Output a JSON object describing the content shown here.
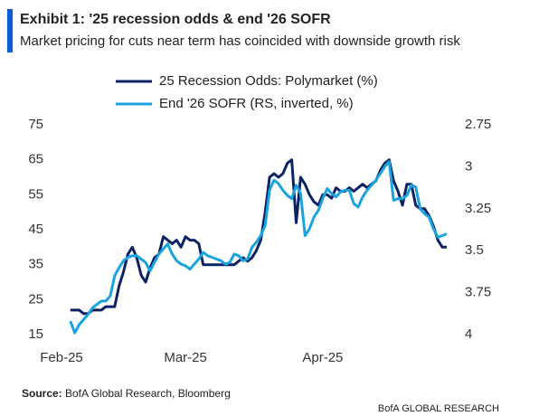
{
  "chart_data": {
    "type": "line",
    "title": "Exhibit 1: '25 recession odds & end '26 SOFR",
    "subtitle": "Market pricing for cuts near term has coincided with downside growth risk",
    "source_label": "Source:",
    "source": "BofA Global Research, Bloomberg",
    "footer": "BofA GLOBAL RESEARCH",
    "categories": [
      "Feb-25",
      null,
      null,
      null,
      null,
      null,
      null,
      null,
      null,
      null,
      null,
      null,
      null,
      null,
      null,
      null,
      null,
      null,
      null,
      null,
      null,
      null,
      null,
      null,
      null,
      null,
      null,
      null,
      "Mar-25",
      null,
      null,
      null,
      null,
      null,
      null,
      null,
      null,
      null,
      null,
      null,
      null,
      null,
      null,
      null,
      null,
      null,
      null,
      null,
      null,
      null,
      null,
      null,
      null,
      null,
      null,
      null,
      null,
      null,
      null,
      "Apr-25",
      null,
      null,
      null,
      null,
      null,
      null,
      null,
      null,
      null,
      null,
      null,
      null,
      null,
      null,
      null,
      null,
      null,
      null,
      null,
      null,
      null,
      null,
      null,
      null,
      null,
      null,
      null,
      null
    ],
    "series": [
      {
        "name": "25 Recession Odds: Polymarket (%)",
        "color": "#0b2265",
        "axis": "y",
        "values": [
          null,
          null,
          22,
          22,
          22,
          21,
          21,
          22,
          22,
          22,
          23,
          23,
          23,
          29,
          33,
          38,
          40,
          37,
          32,
          30,
          34,
          37,
          38,
          43,
          42,
          41,
          42,
          40,
          43,
          42,
          42,
          41,
          35,
          35,
          35,
          35,
          35,
          35,
          35,
          35,
          36,
          37,
          36,
          37,
          39,
          42,
          50,
          60,
          61,
          60,
          61,
          64,
          65,
          47,
          60,
          58,
          55,
          53,
          52,
          55,
          55,
          54,
          57,
          56,
          56,
          57,
          56,
          57,
          58,
          57,
          58,
          59,
          62,
          64,
          65,
          59,
          56,
          52,
          58,
          58,
          52,
          51,
          51,
          49,
          46,
          42,
          40,
          40
        ]
      },
      {
        "name": "End '26 SOFR (RS, inverted, %)",
        "color": "#1ba3dd",
        "axis": "y2",
        "values": [
          null,
          null,
          3.92,
          3.99,
          3.94,
          3.91,
          3.88,
          3.84,
          3.82,
          3.8,
          3.8,
          3.77,
          3.65,
          3.6,
          3.56,
          3.54,
          3.53,
          3.53,
          3.55,
          3.57,
          3.62,
          3.57,
          3.52,
          3.49,
          3.46,
          3.52,
          3.56,
          3.58,
          3.59,
          3.61,
          3.58,
          3.55,
          3.51,
          3.53,
          3.54,
          3.55,
          3.56,
          3.58,
          3.57,
          3.52,
          3.53,
          3.56,
          3.55,
          3.48,
          3.45,
          3.41,
          3.35,
          3.14,
          3.08,
          3.1,
          3.14,
          3.17,
          3.19,
          3.11,
          3.16,
          3.41,
          3.37,
          3.3,
          3.26,
          3.19,
          3.13,
          3.16,
          3.18,
          3.15,
          3.14,
          3.14,
          3.22,
          3.24,
          3.18,
          3.14,
          3.11,
          3.08,
          3.04,
          3.0,
          2.97,
          3.2,
          3.19,
          3.19,
          3.17,
          3.11,
          3.12,
          3.25,
          3.28,
          3.3,
          3.37,
          3.42,
          3.41,
          3.4
        ]
      }
    ],
    "ylim": [
      15,
      75
    ],
    "yticks": [
      15,
      25,
      35,
      45,
      55,
      65,
      75
    ],
    "y2lim": [
      2.75,
      4
    ],
    "y2_inverted": true,
    "y2ticks": [
      2.75,
      3,
      3.25,
      3.5,
      3.75,
      4
    ],
    "legend": "top",
    "grid": false
  }
}
